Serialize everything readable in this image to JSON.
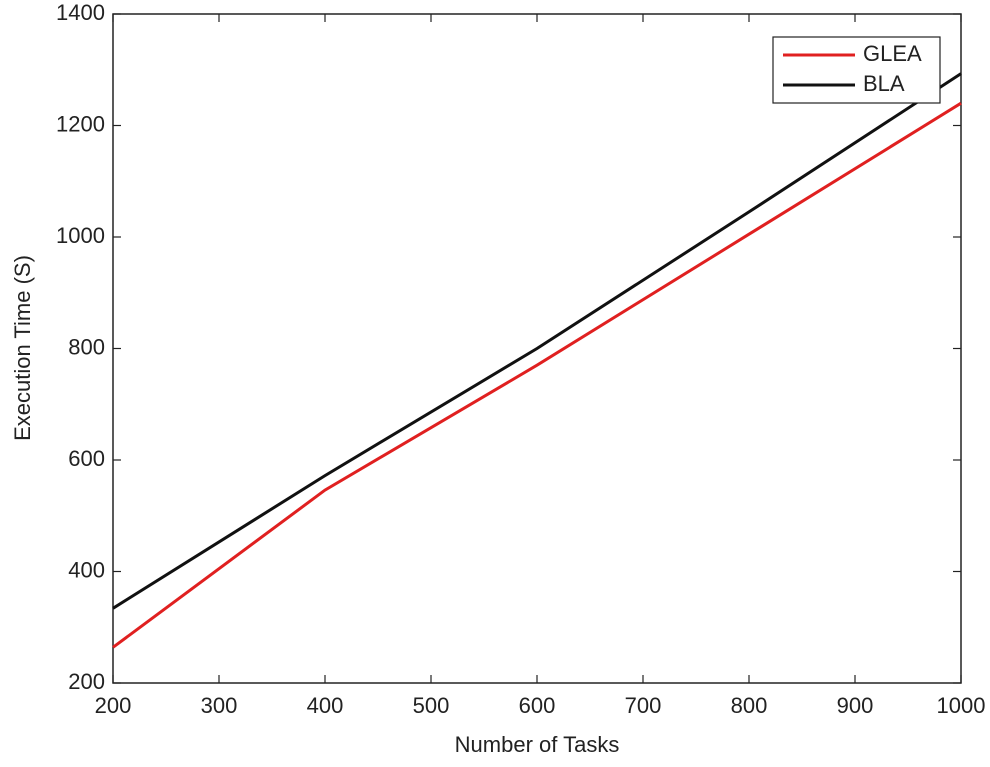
{
  "chart_data": {
    "type": "line",
    "x_label": "Number of Tasks",
    "y_label": "Execution Time (S)",
    "x": [
      200,
      400,
      600,
      800,
      1000
    ],
    "series": [
      {
        "name": "GLEA",
        "color": "#e02020",
        "values": [
          264,
          546,
          770,
          1005,
          1240
        ]
      },
      {
        "name": "BLA",
        "color": "#111111",
        "values": [
          334,
          572,
          800,
          1045,
          1293
        ]
      }
    ],
    "xlim": [
      200,
      1000
    ],
    "xticks": [
      200,
      300,
      400,
      500,
      600,
      700,
      800,
      900,
      1000
    ],
    "ylim": [
      200,
      1400
    ],
    "yticks": [
      200,
      400,
      600,
      800,
      1000,
      1200,
      1400
    ],
    "grid": false,
    "legend": "upper right"
  }
}
